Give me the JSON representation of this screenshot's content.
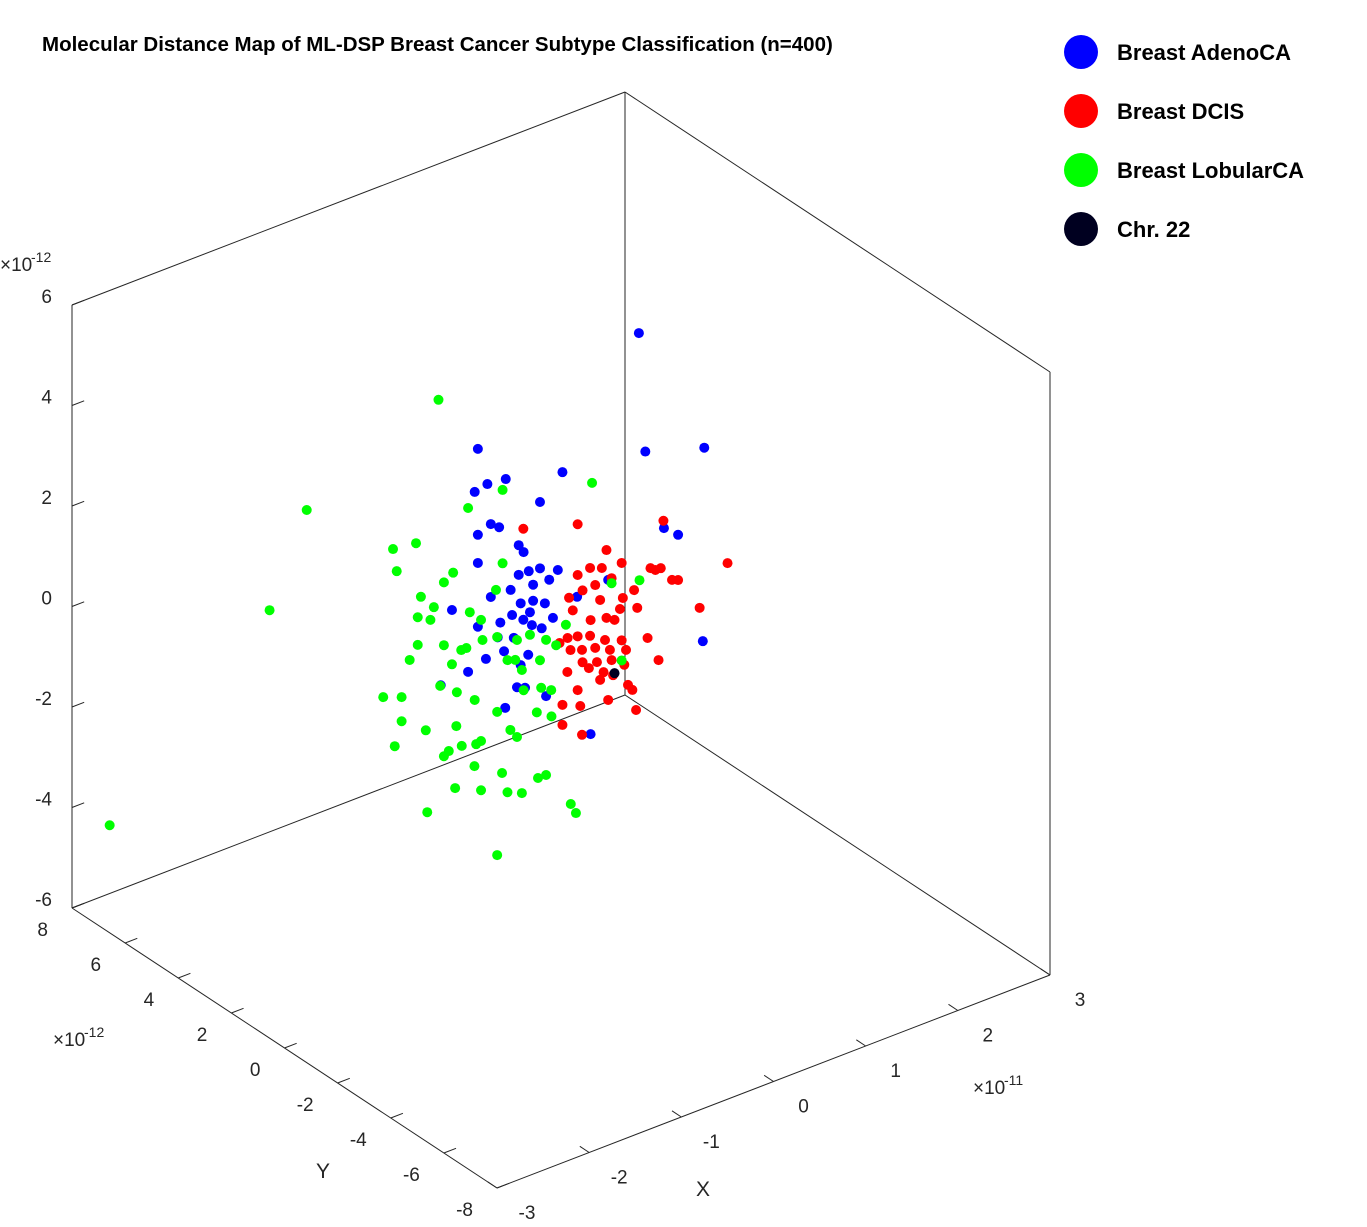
{
  "chart_data": {
    "type": "scatter3d",
    "title": "Molecular Distance Map of ML-DSP Breast Cancer Subtype Classification (n=400)",
    "xlabel": "X",
    "ylabel": "Y",
    "exponent_base": "×10",
    "x_exponent": "-11",
    "y_exponent": "-12",
    "z_exponent": "-12",
    "xlim": [
      -3,
      3
    ],
    "ylim": [
      -8,
      8
    ],
    "zlim": [
      -6,
      6
    ],
    "xticks": [
      -3,
      -2,
      -1,
      0,
      1,
      2,
      3
    ],
    "yticks": [
      -8,
      -6,
      -4,
      -2,
      0,
      2,
      4,
      6,
      8
    ],
    "zticks": [
      -6,
      -4,
      -2,
      0,
      2,
      4,
      6
    ],
    "series": [
      {
        "name": "Breast AdenoCA",
        "color": "#0000ff",
        "x": [
          0.6,
          0.52,
          0.88,
          -0.51,
          0.01,
          -0.34,
          -0.45,
          -0.53,
          -0.13,
          -0.43,
          -0.38,
          -0.51,
          0.63,
          0.72,
          -0.26,
          -0.23,
          -0.51,
          -0.43,
          -0.26,
          -0.2,
          -0.13,
          -0.07,
          -0.02,
          -0.17,
          -0.31,
          -0.25,
          -0.17,
          -0.1,
          -0.19,
          -0.67,
          -0.3,
          -0.51,
          -0.37,
          -0.18,
          -0.05,
          -0.39,
          -0.29,
          -0.23,
          -0.12,
          -0.46,
          -0.35,
          -0.2,
          -0.25,
          -0.57,
          -0.74,
          -0.27,
          -0.22,
          -0.34,
          -0.09,
          0.18,
          0.87,
          0.29,
          0.1
        ],
        "y": [
          -0.85,
          -1.37,
          -2.34,
          1.36,
          -0.02,
          0.9,
          1.21,
          1.41,
          0.34,
          1.15,
          1.01,
          1.36,
          -1.69,
          -1.91,
          0.69,
          0.61,
          1.36,
          1.15,
          0.69,
          0.52,
          0.34,
          0.2,
          0.05,
          0.46,
          0.82,
          0.65,
          0.46,
          0.26,
          0.51,
          1.78,
          0.8,
          1.36,
          1.0,
          0.47,
          0.13,
          1.03,
          0.77,
          0.62,
          0.31,
          1.23,
          0.93,
          0.54,
          0.65,
          1.52,
          1.96,
          0.72,
          0.59,
          0.92,
          0.25,
          -0.49,
          -2.32,
          -0.77,
          -0.26
        ],
        "z": [
          5.98,
          3.86,
          4.02,
          3.69,
          3.34,
          3.13,
          3.0,
          2.83,
          2.72,
          2.21,
          2.16,
          1.98,
          2.37,
          2.25,
          1.83,
          1.7,
          1.42,
          0.76,
          1.24,
          1.33,
          1.4,
          1.18,
          1.39,
          1.06,
          0.93,
          0.68,
          0.74,
          0.71,
          0.51,
          0.45,
          0.43,
          0.15,
          0.26,
          0.26,
          0.43,
          -0.03,
          -0.02,
          0.35,
          0.21,
          -0.48,
          -0.3,
          -0.34,
          -0.55,
          -0.76,
          -1.06,
          -1.0,
          -1.0,
          -1.43,
          -1.14,
          -1.83,
          0.17,
          1.26,
          0.88
        ]
      },
      {
        "name": "Breast DCIS",
        "color": "#ff0000",
        "x": [
          -0.23,
          0.1,
          0.63,
          1.02,
          0.28,
          0.37,
          0.25,
          0.18,
          0.1,
          0.31,
          0.55,
          0.58,
          0.61,
          0.68,
          0.72,
          0.85,
          0.45,
          0.38,
          0.36,
          0.47,
          0.21,
          0.24,
          0.13,
          0.05,
          0.07,
          0.18,
          0.28,
          0.33,
          0.04,
          0.1,
          0.18,
          0.27,
          0.37,
          0.53,
          0.13,
          0.21,
          0.3,
          0.4,
          -0.01,
          0.06,
          0.13,
          0.22,
          0.31,
          0.39,
          0.6,
          0.04,
          0.17,
          0.26,
          0.32,
          0.1,
          0.24,
          0.41,
          0.44,
          0.01,
          0.12,
          0.29,
          0.46,
          0.01,
          0.13
        ],
        "y": [
          0.62,
          -0.28,
          -1.67,
          -2.73,
          -0.74,
          -1.0,
          -0.67,
          -0.47,
          -0.28,
          -0.83,
          -1.46,
          -1.54,
          -1.64,
          -1.82,
          -1.91,
          -2.27,
          -1.19,
          -1.01,
          -0.97,
          -1.24,
          -0.56,
          -0.64,
          -0.36,
          -0.13,
          -0.2,
          -0.49,
          -0.74,
          -0.87,
          -0.11,
          -0.28,
          -0.47,
          -0.72,
          -1.0,
          -1.42,
          -0.34,
          -0.56,
          -0.8,
          -1.06,
          0.02,
          -0.15,
          -0.36,
          -0.59,
          -0.83,
          -1.03,
          -1.59,
          -0.1,
          -0.46,
          -0.7,
          -0.85,
          -0.28,
          -0.64,
          -1.1,
          -1.16,
          -0.02,
          -0.31,
          -0.77,
          -1.23,
          -0.02,
          -0.34
        ],
        "z": [
          2.16,
          2.33,
          2.51,
          1.76,
          1.85,
          1.62,
          1.49,
          1.47,
          1.32,
          1.3,
          1.55,
          1.52,
          1.57,
          1.35,
          1.35,
          0.83,
          1.09,
          0.92,
          0.7,
          0.74,
          1.14,
          0.85,
          1.02,
          0.85,
          0.61,
          0.44,
          0.5,
          0.47,
          0.05,
          0.1,
          0.12,
          0.06,
          0.08,
          0.16,
          -0.17,
          -0.11,
          -0.13,
          -0.11,
          -0.06,
          -0.19,
          -0.41,
          -0.39,
          -0.33,
          -0.41,
          -0.27,
          -0.63,
          -0.52,
          -0.58,
          -0.63,
          -0.97,
          -0.74,
          -0.8,
          -0.9,
          -1.29,
          -1.29,
          -1.13,
          -1.29,
          -1.69,
          -1.86
        ]
      },
      {
        "name": "Breast LobularCA",
        "color": "#00ff00",
        "x": [
          -2.77,
          -1.79,
          -1.56,
          -0.75,
          0.19,
          -0.36,
          -0.57,
          -1.03,
          -0.89,
          -1.01,
          -0.66,
          -0.72,
          -0.86,
          -0.78,
          -0.88,
          -0.56,
          -0.8,
          -0.49,
          -0.36,
          -0.4,
          -0.48,
          -0.88,
          -0.72,
          -0.61,
          -0.58,
          -0.93,
          -0.67,
          -0.39,
          -0.33,
          -0.27,
          -0.19,
          -0.28,
          -0.24,
          -0.13,
          -0.09,
          -0.03,
          0.03,
          -0.23,
          -0.12,
          -0.06,
          0.31,
          0.48,
          0.37,
          -0.74,
          -0.64,
          -1.09,
          -0.98,
          -0.53,
          -0.39,
          -0.15,
          -0.06,
          -0.98,
          -0.64,
          -0.83,
          -1.02,
          -0.69,
          -0.61,
          -0.52,
          -0.49,
          -0.31,
          -0.27,
          -0.72,
          -0.53,
          -0.36,
          -0.33,
          -0.24,
          -0.14,
          -0.09,
          -0.65,
          -0.49,
          -0.82,
          0.06,
          0.09,
          -0.39
        ],
        "y": [
          7.38,
          4.76,
          4.16,
          2.01,
          -0.51,
          0.95,
          1.52,
          2.75,
          2.37,
          2.68,
          1.77,
          1.91,
          2.29,
          2.08,
          2.34,
          1.49,
          2.14,
          1.31,
          0.95,
          1.06,
          1.29,
          2.34,
          1.91,
          1.64,
          1.55,
          2.47,
          1.78,
          1.05,
          0.87,
          0.72,
          0.51,
          0.75,
          0.64,
          0.34,
          0.25,
          0.08,
          -0.08,
          0.61,
          0.33,
          0.16,
          -0.83,
          -1.29,
          -1.0,
          1.98,
          1.7,
          2.91,
          2.6,
          1.41,
          1.05,
          0.39,
          0.15,
          2.6,
          1.72,
          2.21,
          2.72,
          1.83,
          1.62,
          1.39,
          1.31,
          0.83,
          0.72,
          1.91,
          1.42,
          0.97,
          0.87,
          0.64,
          0.38,
          0.25,
          1.73,
          1.31,
          2.19,
          -0.16,
          -0.25,
          1.05
        ],
        "z": [
          -4.3,
          0.2,
          2.24,
          4.61,
          3.17,
          2.91,
          2.5,
          1.58,
          1.73,
          1.15,
          1.19,
          0.99,
          0.67,
          0.48,
          0.26,
          0.43,
          0.22,
          0.29,
          1.45,
          0.91,
          -0.11,
          -0.29,
          -0.26,
          -0.34,
          -0.29,
          -0.6,
          -0.63,
          -0.03,
          -0.47,
          -0.06,
          0.06,
          -0.46,
          -0.65,
          -0.43,
          -0.02,
          -0.11,
          0.31,
          -1.05,
          -0.98,
          -1.01,
          1.2,
          1.3,
          -0.32,
          -1.08,
          -1.18,
          -1.38,
          -1.35,
          -1.31,
          -1.52,
          -1.47,
          -1.53,
          -1.83,
          -1.86,
          -1.98,
          -2.34,
          -2.36,
          -2.24,
          -2.19,
          -2.12,
          -1.86,
          -1.99,
          -2.47,
          -2.63,
          -2.73,
          -3.1,
          -3.1,
          -2.78,
          -2.71,
          -3.09,
          -3.1,
          -3.61,
          -3.25,
          -3.42,
          -4.37
        ]
      },
      {
        "name": "Chr. 22",
        "color": "#000020",
        "x": [
          0.33
        ],
        "y": [
          -0.87
        ],
        "z": [
          -0.59
        ]
      }
    ]
  }
}
